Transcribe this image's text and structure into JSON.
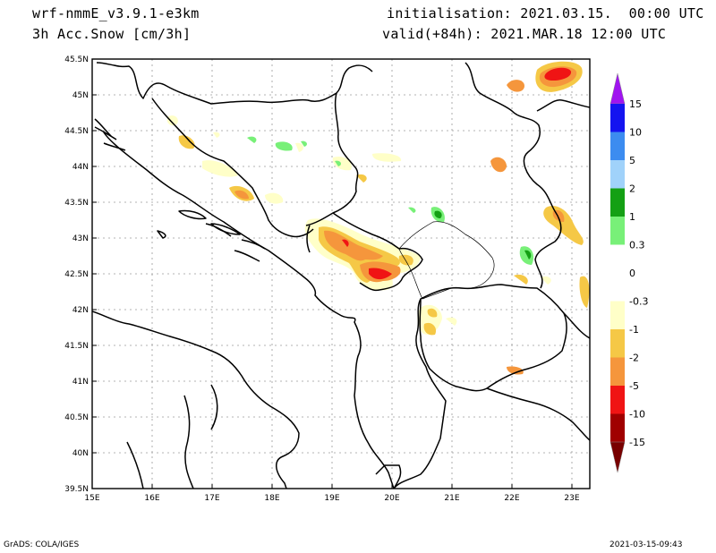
{
  "header": {
    "model": "wrf-nmmE_v3.9.1-e3km",
    "variable": "3h Acc.Snow [cm/3h]",
    "initialisation": "initialisation: 2021.03.15.  00:00 UTC",
    "valid": "valid(+84h): 2021.MAR.18 12:00 UTC"
  },
  "footer": {
    "left": "GrADS: COLA/IGES",
    "right": "2021-03-15-09:43"
  },
  "map": {
    "lat_labels": [
      "45.5N",
      "45N",
      "44.5N",
      "44N",
      "43.5N",
      "43N",
      "42.5N",
      "42N",
      "41.5N",
      "41N",
      "40.5N",
      "40N",
      "39.5N"
    ],
    "lon_labels": [
      "15E",
      "16E",
      "17E",
      "18E",
      "19E",
      "20E",
      "21E",
      "22E",
      "23E"
    ]
  },
  "colorbar": {
    "labels": [
      "15",
      "10",
      "5",
      "2",
      "1",
      "0.3",
      "0",
      "-0.3",
      "-1",
      "-2",
      "-5",
      "-10",
      "-15"
    ],
    "colors": [
      "#1414f0",
      "#3c8cf0",
      "#a0d2fa",
      "#14a014",
      "#78f078",
      "#ffffff",
      "#ffffc8",
      "#f5c846",
      "#f5963c",
      "#f01414",
      "#a00000"
    ],
    "top_arrow_color": "#a014f0",
    "bottom_arrow_color": "#780000"
  },
  "snow_colors": {
    "light": "#ffffc8",
    "yellow": "#f5c846",
    "orange": "#f5963c",
    "red": "#f01414",
    "green_light": "#78f078",
    "green": "#14a014"
  }
}
